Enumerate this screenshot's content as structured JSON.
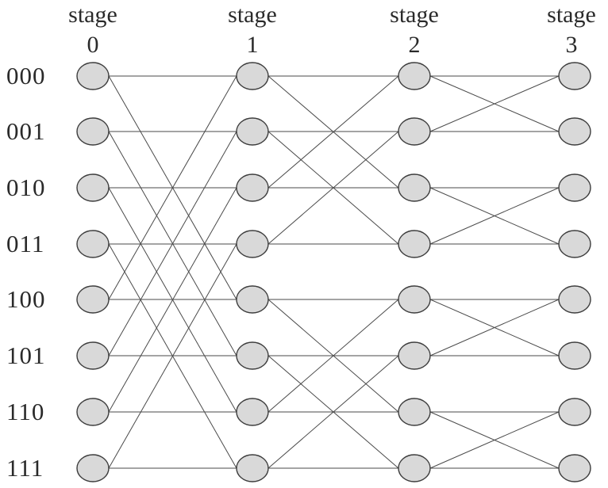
{
  "stages": [
    {
      "word": "stage",
      "number": "0"
    },
    {
      "word": "stage",
      "number": "1"
    },
    {
      "word": "stage",
      "number": "2"
    },
    {
      "word": "stage",
      "number": "3"
    }
  ],
  "row_labels": [
    "000",
    "001",
    "010",
    "011",
    "100",
    "101",
    "110",
    "111"
  ],
  "node_fill": "#d9d9d9",
  "node_stroke": "#3c3c3c",
  "edge_color": "#4a4a4a",
  "connections": [
    {
      "from_stage": 0,
      "cross_bit": 4
    },
    {
      "from_stage": 1,
      "cross_bit": 2
    },
    {
      "from_stage": 2,
      "cross_bit": 1
    }
  ]
}
